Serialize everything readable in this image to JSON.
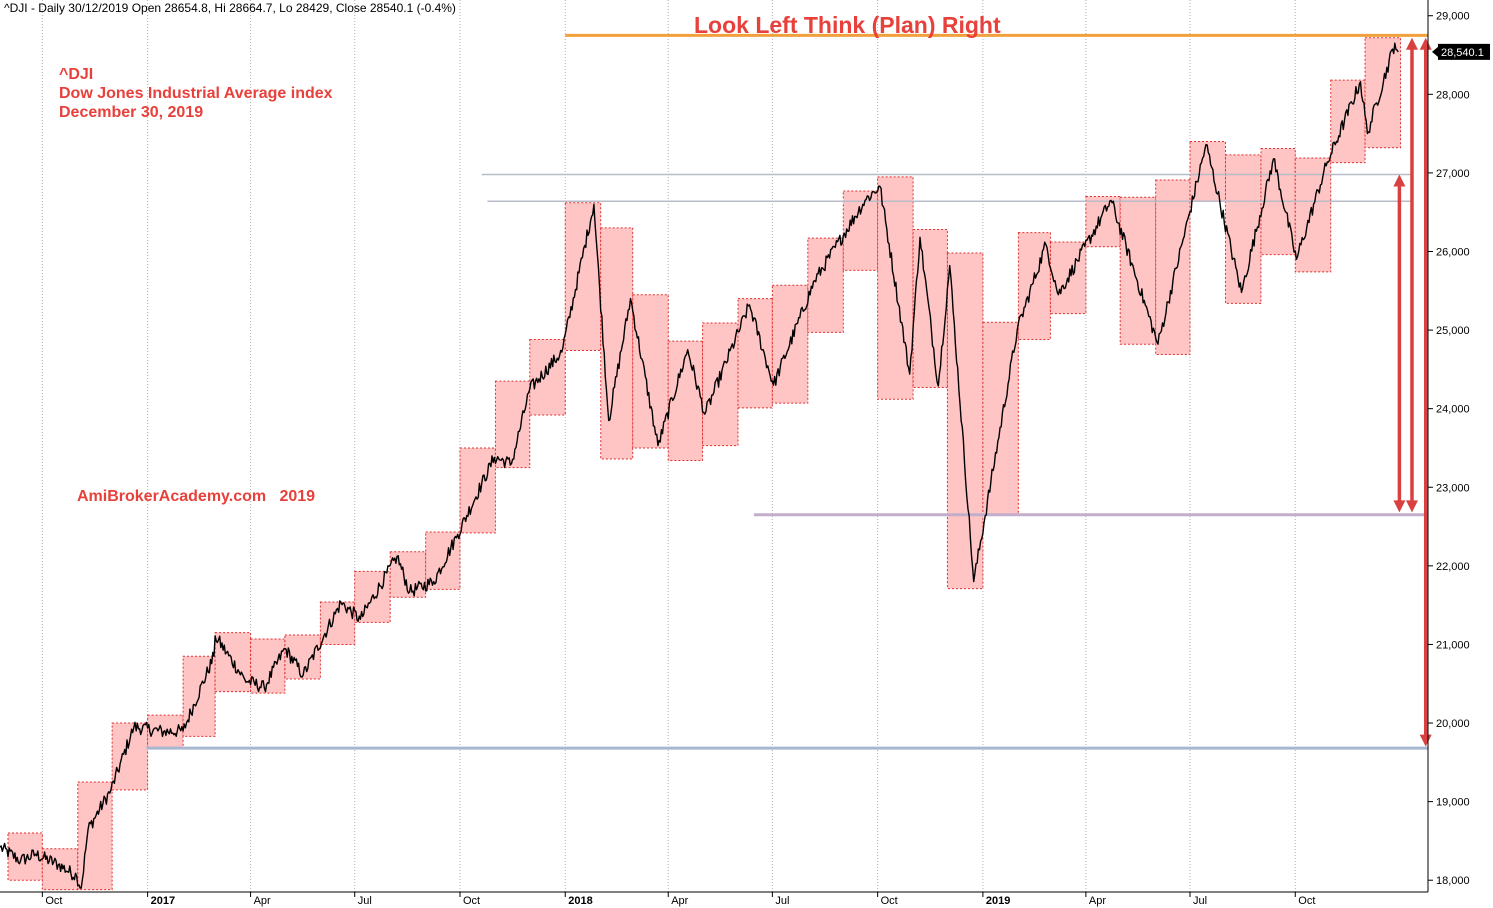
{
  "header_text": "^DJI - Daily 30/12/2019 Open 28654.8, Hi 28664.7, Lo 28429, Close 28540.1 (-0.4%)",
  "colors": {
    "box_fill": "#ffc4c4",
    "box_stroke": "#e03030",
    "annotation": "#e8403a",
    "orange_line": "#f2a03c",
    "grey_line": "#b8bcc8",
    "lavender_line": "#c2aecb",
    "blue_line": "#a7b7cf",
    "arrow": "#d94040",
    "grid": "#b0b0b0"
  },
  "chart_data": {
    "type": "line",
    "series": [],
    "title": "Look Left Think (Plan) Right",
    "annotations": {
      "symbol": "^DJI",
      "name": "Dow Jones Industrial Average index",
      "date": "December 30, 2019",
      "watermark": "AmiBrokerAcademy.com   2019"
    },
    "last_price_label": "28,540.1",
    "last_price": 28540.1,
    "ylim": [
      17850,
      29200
    ],
    "y_ticks": [
      {
        "value": 18000,
        "label": "18,000"
      },
      {
        "value": 19000,
        "label": "19,000"
      },
      {
        "value": 20000,
        "label": "20,000"
      },
      {
        "value": 21000,
        "label": "21,000"
      },
      {
        "value": 22000,
        "label": "22,000"
      },
      {
        "value": 23000,
        "label": "23,000"
      },
      {
        "value": 24000,
        "label": "24,000"
      },
      {
        "value": 25000,
        "label": "25,000"
      },
      {
        "value": 26000,
        "label": "26,000"
      },
      {
        "value": 27000,
        "label": "27,000"
      },
      {
        "value": 28000,
        "label": "28,000"
      },
      {
        "value": 29000,
        "label": "29,000"
      }
    ],
    "x_range": [
      "2016-08-25",
      "2020-01-25"
    ],
    "x_ticks": [
      {
        "date": "2016-10-01",
        "label": "Oct",
        "bold": false
      },
      {
        "date": "2017-01-01",
        "label": "2017",
        "bold": true
      },
      {
        "date": "2017-04-01",
        "label": "Apr",
        "bold": false
      },
      {
        "date": "2017-07-01",
        "label": "Jul",
        "bold": false
      },
      {
        "date": "2017-10-01",
        "label": "Oct",
        "bold": false
      },
      {
        "date": "2018-01-01",
        "label": "2018",
        "bold": true
      },
      {
        "date": "2018-04-01",
        "label": "Apr",
        "bold": false
      },
      {
        "date": "2018-07-01",
        "label": "Jul",
        "bold": false
      },
      {
        "date": "2018-10-01",
        "label": "Oct",
        "bold": false
      },
      {
        "date": "2019-01-01",
        "label": "2019",
        "bold": true
      },
      {
        "date": "2019-04-01",
        "label": "Apr",
        "bold": false
      },
      {
        "date": "2019-07-01",
        "label": "Jul",
        "bold": false
      },
      {
        "date": "2019-10-01",
        "label": "Oct",
        "bold": false
      }
    ],
    "monthly_ranges": [
      {
        "month": "2016-09",
        "high": 18600,
        "low": 18000
      },
      {
        "month": "2016-10",
        "high": 18400,
        "low": 17880
      },
      {
        "month": "2016-11",
        "high": 19250,
        "low": 17880
      },
      {
        "month": "2016-12",
        "high": 20000,
        "low": 19150
      },
      {
        "month": "2017-01",
        "high": 20100,
        "low": 19680
      },
      {
        "month": "2017-02",
        "high": 20850,
        "low": 19830
      },
      {
        "month": "2017-03",
        "high": 21150,
        "low": 20400
      },
      {
        "month": "2017-04",
        "high": 21070,
        "low": 20380
      },
      {
        "month": "2017-05",
        "high": 21120,
        "low": 20560
      },
      {
        "month": "2017-06",
        "high": 21540,
        "low": 21000
      },
      {
        "month": "2017-07",
        "high": 21930,
        "low": 21280
      },
      {
        "month": "2017-08",
        "high": 22180,
        "low": 21600
      },
      {
        "month": "2017-09",
        "high": 22430,
        "low": 21700
      },
      {
        "month": "2017-10",
        "high": 23500,
        "low": 22420
      },
      {
        "month": "2017-11",
        "high": 24350,
        "low": 23250
      },
      {
        "month": "2017-12",
        "high": 24880,
        "low": 23920
      },
      {
        "month": "2018-01",
        "high": 26620,
        "low": 24740
      },
      {
        "month": "2018-02",
        "high": 26300,
        "low": 23360
      },
      {
        "month": "2018-03",
        "high": 25450,
        "low": 23500
      },
      {
        "month": "2018-04",
        "high": 24860,
        "low": 23340
      },
      {
        "month": "2018-05",
        "high": 25090,
        "low": 23530
      },
      {
        "month": "2018-06",
        "high": 25400,
        "low": 24010
      },
      {
        "month": "2018-07",
        "high": 25570,
        "low": 24070
      },
      {
        "month": "2018-08",
        "high": 26170,
        "low": 24970
      },
      {
        "month": "2018-09",
        "high": 26770,
        "low": 25760
      },
      {
        "month": "2018-10",
        "high": 26950,
        "low": 24120
      },
      {
        "month": "2018-11",
        "high": 26280,
        "low": 24270
      },
      {
        "month": "2018-12",
        "high": 25980,
        "low": 21710
      },
      {
        "month": "2019-01",
        "high": 25100,
        "low": 22640
      },
      {
        "month": "2019-02",
        "high": 26240,
        "low": 24880
      },
      {
        "month": "2019-03",
        "high": 26120,
        "low": 25210
      },
      {
        "month": "2019-04",
        "high": 26700,
        "low": 26060
      },
      {
        "month": "2019-05",
        "high": 26690,
        "low": 24820
      },
      {
        "month": "2019-06",
        "high": 26910,
        "low": 24690
      },
      {
        "month": "2019-07",
        "high": 27400,
        "low": 26640
      },
      {
        "month": "2019-08",
        "high": 27230,
        "low": 25340
      },
      {
        "month": "2019-09",
        "high": 27310,
        "low": 25960
      },
      {
        "month": "2019-10",
        "high": 27190,
        "low": 25740
      },
      {
        "month": "2019-11",
        "high": 28180,
        "low": 27130
      },
      {
        "month": "2019-12",
        "high": 28720,
        "low": 27320
      }
    ],
    "price_anchors": [
      {
        "date": "2016-08-25",
        "value": 18420
      },
      {
        "date": "2016-09-12",
        "value": 18250
      },
      {
        "date": "2016-09-25",
        "value": 18330
      },
      {
        "date": "2016-10-15",
        "value": 18200
      },
      {
        "date": "2016-10-31",
        "value": 18050
      },
      {
        "date": "2016-11-04",
        "value": 17900
      },
      {
        "date": "2016-11-10",
        "value": 18650
      },
      {
        "date": "2016-11-30",
        "value": 19150
      },
      {
        "date": "2016-12-20",
        "value": 19950
      },
      {
        "date": "2017-01-15",
        "value": 19890
      },
      {
        "date": "2017-02-01",
        "value": 19900
      },
      {
        "date": "2017-02-28",
        "value": 20850
      },
      {
        "date": "2017-03-01",
        "value": 21110
      },
      {
        "date": "2017-03-27",
        "value": 20550
      },
      {
        "date": "2017-04-13",
        "value": 20450
      },
      {
        "date": "2017-05-01",
        "value": 20950
      },
      {
        "date": "2017-05-17",
        "value": 20610
      },
      {
        "date": "2017-06-19",
        "value": 21530
      },
      {
        "date": "2017-07-06",
        "value": 21320
      },
      {
        "date": "2017-08-07",
        "value": 22120
      },
      {
        "date": "2017-08-18",
        "value": 21670
      },
      {
        "date": "2017-09-08",
        "value": 21800
      },
      {
        "date": "2017-09-29",
        "value": 22400
      },
      {
        "date": "2017-10-31",
        "value": 23380
      },
      {
        "date": "2017-11-15",
        "value": 23300
      },
      {
        "date": "2017-12-01",
        "value": 24250
      },
      {
        "date": "2017-12-29",
        "value": 24720
      },
      {
        "date": "2018-01-26",
        "value": 26600
      },
      {
        "date": "2018-02-08",
        "value": 23850
      },
      {
        "date": "2018-02-27",
        "value": 25400
      },
      {
        "date": "2018-03-23",
        "value": 23530
      },
      {
        "date": "2018-04-18",
        "value": 24750
      },
      {
        "date": "2018-05-03",
        "value": 23930
      },
      {
        "date": "2018-06-11",
        "value": 25320
      },
      {
        "date": "2018-07-02",
        "value": 24300
      },
      {
        "date": "2018-08-07",
        "value": 25630
      },
      {
        "date": "2018-09-20",
        "value": 26650
      },
      {
        "date": "2018-10-03",
        "value": 26830
      },
      {
        "date": "2018-10-29",
        "value": 24440
      },
      {
        "date": "2018-11-07",
        "value": 26180
      },
      {
        "date": "2018-11-23",
        "value": 24290
      },
      {
        "date": "2018-12-03",
        "value": 25820
      },
      {
        "date": "2018-12-24",
        "value": 21800
      },
      {
        "date": "2019-01-31",
        "value": 25000
      },
      {
        "date": "2019-02-25",
        "value": 26090
      },
      {
        "date": "2019-03-08",
        "value": 25450
      },
      {
        "date": "2019-04-23",
        "value": 26650
      },
      {
        "date": "2019-06-03",
        "value": 24820
      },
      {
        "date": "2019-07-15",
        "value": 27360
      },
      {
        "date": "2019-08-15",
        "value": 25480
      },
      {
        "date": "2019-09-12",
        "value": 27180
      },
      {
        "date": "2019-10-02",
        "value": 25900
      },
      {
        "date": "2019-10-28",
        "value": 27090
      },
      {
        "date": "2019-11-27",
        "value": 28160
      },
      {
        "date": "2019-12-03",
        "value": 27500
      },
      {
        "date": "2019-12-27",
        "value": 28650
      },
      {
        "date": "2019-12-30",
        "value": 28540
      }
    ],
    "reference_lines": [
      {
        "name": "orange-resistance",
        "value": 28750,
        "from": "2018-01-01",
        "to": "2020-01-25",
        "color": "#f2a03c",
        "width": 3
      },
      {
        "name": "grey-upper",
        "value": 26980,
        "from": "2017-10-20",
        "to": "2020-01-10",
        "color": "#b8bcc8",
        "width": 1.5
      },
      {
        "name": "grey-lower",
        "value": 26640,
        "from": "2017-10-25",
        "to": "2020-01-10",
        "color": "#b8bcc8",
        "width": 1.5
      },
      {
        "name": "lavender-support",
        "value": 22650,
        "from": "2018-06-15",
        "to": "2020-01-25",
        "color": "#c2aecb",
        "width": 3
      },
      {
        "name": "blue-support",
        "value": 19680,
        "from": "2016-12-31",
        "to": "2020-01-25",
        "color": "#a7b7cf",
        "width": 3
      }
    ],
    "arrows": [
      {
        "name": "arrow-right",
        "x": "2020-01-23",
        "from": 28720,
        "to": 19700
      },
      {
        "name": "arrow-mid",
        "x": "2020-01-11",
        "from": 28720,
        "to": 22680
      },
      {
        "name": "arrow-left",
        "x": "2019-12-31",
        "from": 26980,
        "to": 22680
      }
    ]
  }
}
